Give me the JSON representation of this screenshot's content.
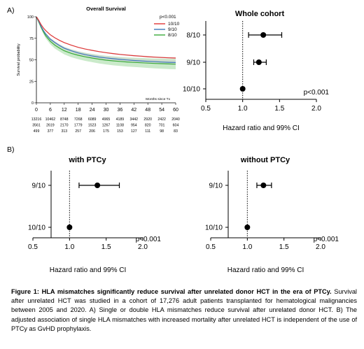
{
  "panel_labels": {
    "a": "A)",
    "b": "B)"
  },
  "caption": {
    "title": "Figure 1: HLA mismatches significantly reduce survival after unrelated donor HCT in the era of PTCy.",
    "body": "Survival after unrelated HCT was studied in a cohort of 17,276 adult patients transplanted for hematological malignancies between 2005 and 2020. A) Single or double HLA mismatches reduce survival after unrelated donor HCT. B) The adjusted association of single HLA mismatches with increased mortality after unrelated HCT is independent of the use of PTCy as GvHD prophylaxis."
  },
  "colors": {
    "10/10": "#e03535",
    "9/10": "#3d78b8",
    "8/10": "#3aaa3a",
    "8/10_band": "#9fd89f",
    "ci_band": "#d0d0d0"
  },
  "chart_data": [
    {
      "id": "km",
      "type": "line",
      "title": "Overall Survival",
      "xlabel": "Months since Tx",
      "ylabel": "Survival probability",
      "p_value": "p<0.001",
      "xlim": [
        0,
        60
      ],
      "ylim": [
        0,
        100
      ],
      "xticks": [
        "0",
        "6",
        "12",
        "18",
        "24",
        "30",
        "36",
        "42",
        "48",
        "54",
        "60"
      ],
      "yticks": [
        "0",
        "25",
        "50",
        "75",
        "100"
      ],
      "x": [
        0,
        1,
        2,
        3,
        4,
        6,
        8,
        10,
        12,
        15,
        18,
        21,
        24,
        27,
        30,
        33,
        36,
        39,
        42,
        45,
        48,
        51,
        54,
        57,
        60
      ],
      "series": [
        {
          "name": "10/10",
          "values": [
            100,
            96,
            91,
            87,
            84,
            79,
            75.5,
            72.5,
            70,
            67,
            64.5,
            62.5,
            61,
            59.5,
            58.3,
            57.2,
            56.3,
            55.5,
            54.8,
            54.2,
            53.6,
            53.1,
            52.7,
            52.3,
            52
          ],
          "ci_lower": [
            100,
            95.7,
            90.6,
            86.5,
            83.5,
            78.5,
            75,
            72,
            69.5,
            66.5,
            64,
            62,
            60.4,
            58.9,
            57.7,
            56.5,
            55.6,
            54.8,
            54.1,
            53.4,
            52.8,
            52.3,
            51.8,
            51.4,
            51
          ],
          "ci_upper": [
            100,
            96.3,
            91.4,
            87.5,
            84.5,
            79.5,
            76,
            73,
            70.5,
            67.5,
            65,
            63,
            61.6,
            60.1,
            58.9,
            57.9,
            57,
            56.2,
            55.5,
            55,
            54.4,
            53.9,
            53.6,
            53.2,
            53
          ]
        },
        {
          "name": "9/10",
          "values": [
            100,
            95,
            89,
            84,
            80,
            74,
            70,
            66.5,
            63.5,
            60.5,
            58,
            56,
            54.5,
            53.2,
            52.2,
            51.3,
            50.5,
            49.8,
            49.2,
            48.7,
            48.2,
            47.8,
            47.4,
            47.1,
            46.8
          ],
          "ci_lower": [
            100,
            94.2,
            88,
            82.8,
            78.6,
            72.5,
            68.4,
            64.8,
            61.8,
            58.7,
            56.1,
            54.1,
            52.5,
            51.1,
            50.1,
            49.1,
            48.3,
            47.5,
            46.9,
            46.3,
            45.8,
            45.3,
            44.8,
            44.4,
            44
          ],
          "ci_upper": [
            100,
            95.8,
            90,
            85.2,
            81.4,
            75.5,
            71.6,
            68.2,
            65.2,
            62.3,
            59.9,
            57.9,
            56.5,
            55.3,
            54.3,
            53.5,
            52.7,
            52.1,
            51.5,
            51.1,
            50.6,
            50.3,
            50,
            49.8,
            49.6
          ]
        },
        {
          "name": "8/10",
          "values": [
            100,
            94,
            88,
            82.5,
            78,
            71.5,
            67,
            63.5,
            60.5,
            57.5,
            55.3,
            53.5,
            52,
            50.7,
            49.6,
            48.8,
            48.1,
            47.5,
            47,
            46.6,
            46.2,
            45.8,
            45.5,
            45.2,
            45
          ],
          "ci_lower": [
            100,
            93,
            86,
            80,
            75,
            68,
            63,
            59.5,
            56.3,
            53,
            50.7,
            48.8,
            47.2,
            45.8,
            44.6,
            43.6,
            42.9,
            42.2,
            41.6,
            41.1,
            40.6,
            40.1,
            39.7,
            39.3,
            39
          ],
          "ci_upper": [
            100,
            95,
            90,
            85,
            81,
            75,
            71,
            67.5,
            64.7,
            62,
            59.9,
            58.2,
            56.8,
            55.6,
            54.6,
            54,
            53.3,
            52.8,
            52.4,
            52.1,
            51.8,
            51.5,
            51.3,
            51.1,
            51
          ]
        }
      ],
      "at_risk": [
        [
          "13216",
          "10462",
          "8748",
          "7268",
          "6089",
          "4965",
          "4189",
          "3442",
          "2920",
          "2422",
          "2040"
        ],
        [
          "3561",
          "2619",
          "2170",
          "1779",
          "1523",
          "1267",
          "1108",
          "954",
          "820",
          "701",
          "604"
        ],
        [
          "499",
          "377",
          "313",
          "257",
          "206",
          "175",
          "153",
          "127",
          "111",
          "98",
          "83"
        ]
      ]
    },
    {
      "id": "whole",
      "type": "scatter",
      "title": "Whole cohort",
      "xlabel": "Hazard ratio and 99% CI",
      "p_value": "p<0.001",
      "xlim": [
        0.5,
        2.0
      ],
      "xticks": [
        "0.5",
        "1.0",
        "1.5",
        "2.0"
      ],
      "rows": [
        {
          "label": "8/10",
          "hr": 1.28,
          "lo": 1.08,
          "hi": 1.53
        },
        {
          "label": "9/10",
          "hr": 1.22,
          "lo": 1.15,
          "hi": 1.32
        },
        {
          "label": "10/10",
          "hr": 1.0,
          "lo": null,
          "hi": null
        }
      ]
    },
    {
      "id": "with_ptcy",
      "type": "scatter",
      "title": "with PTCy",
      "xlabel": "Hazard ratio and 99% CI",
      "p_value": "p<0.001",
      "xlim": [
        0.5,
        2.0
      ],
      "xticks": [
        "0.5",
        "1.0",
        "1.5",
        "2.0"
      ],
      "rows": [
        {
          "label": "9/10",
          "hr": 1.38,
          "lo": 1.13,
          "hi": 1.68
        },
        {
          "label": "10/10",
          "hr": 1.0,
          "lo": null,
          "hi": null
        }
      ]
    },
    {
      "id": "without_ptcy",
      "type": "scatter",
      "title": "without PTCy",
      "xlabel": "Hazard ratio and 99% CI",
      "p_value": "p<0.001",
      "xlim": [
        0.5,
        2.0
      ],
      "xticks": [
        "0.5",
        "1.0",
        "1.5",
        "2.0"
      ],
      "rows": [
        {
          "label": "9/10",
          "hr": 1.22,
          "lo": 1.13,
          "hi": 1.33
        },
        {
          "label": "10/10",
          "hr": 1.0,
          "lo": null,
          "hi": null
        }
      ]
    }
  ]
}
